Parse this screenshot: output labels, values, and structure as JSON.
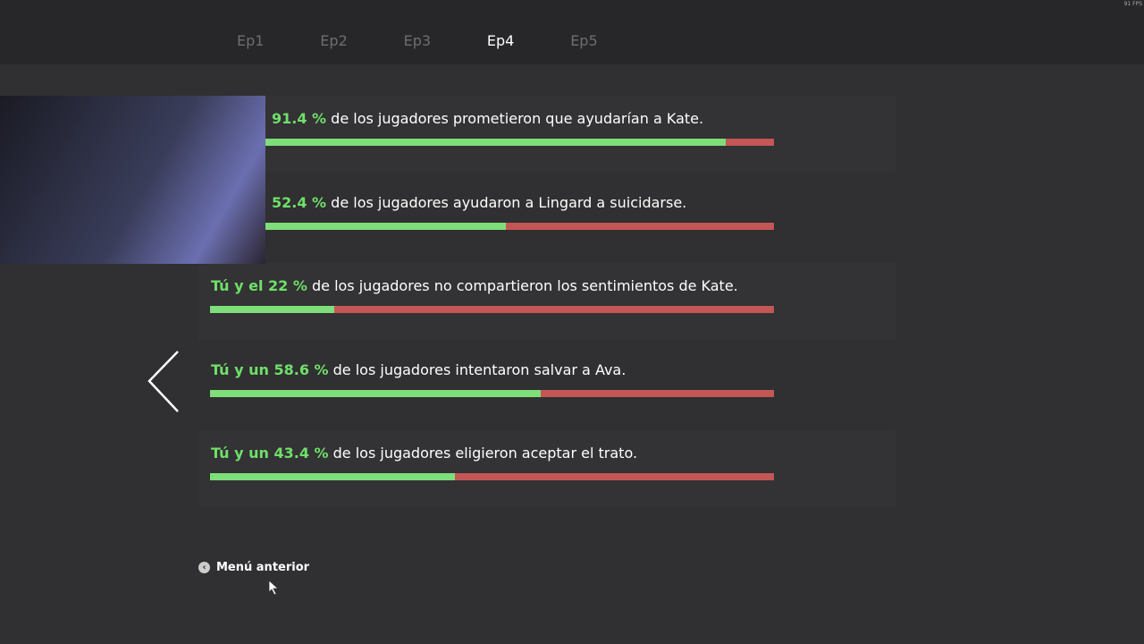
{
  "fps": "91 FPS",
  "tabs": [
    "Ep1",
    "Ep2",
    "Ep3",
    "Ep4",
    "Ep5"
  ],
  "active_tab": 3,
  "choices": [
    {
      "highlight": "91.4 %",
      "text": "de los jugadores prometieron que ayudarían a Kate.",
      "percent": 91.4
    },
    {
      "highlight": "52.4 %",
      "text": "de los jugadores ayudaron a Lingard a suicidarse.",
      "percent": 52.4
    },
    {
      "highlight": "Tú y el 22 %",
      "text": "de los jugadores no compartieron los sentimientos de Kate.",
      "percent": 22
    },
    {
      "highlight": "Tú y un 58.6 %",
      "text": "de los jugadores intentaron salvar a Ava.",
      "percent": 58.6
    },
    {
      "highlight": "Tú y un 43.4 %",
      "text": "de los jugadores eligieron aceptar el trato.",
      "percent": 43.4
    }
  ],
  "back_button": "Menú anterior"
}
